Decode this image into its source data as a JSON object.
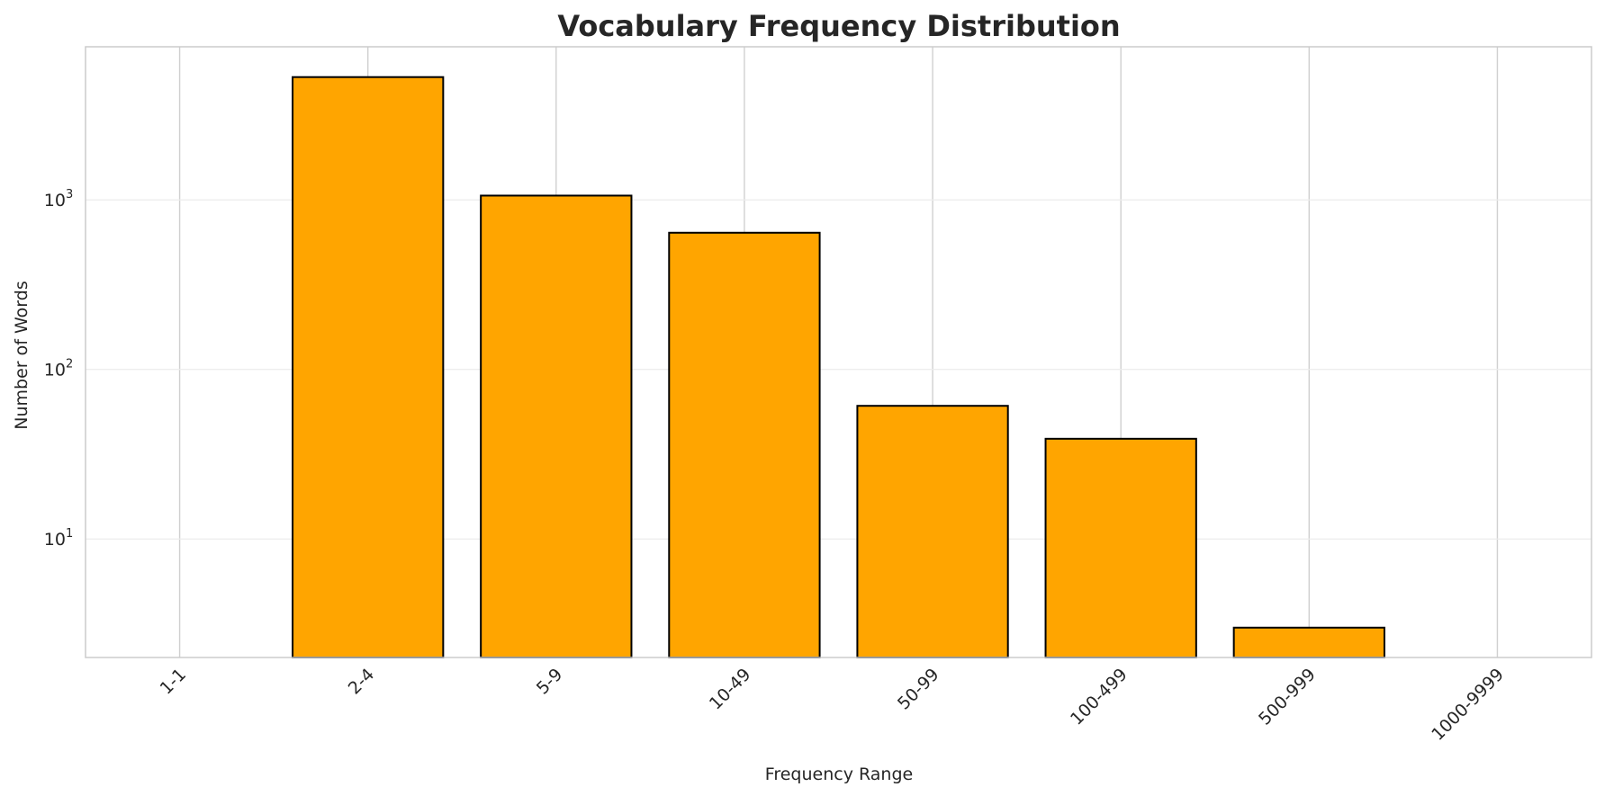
{
  "chart_data": {
    "type": "bar",
    "title": "Vocabulary Frequency Distribution",
    "xlabel": "Frequency Range",
    "ylabel": "Number of Words",
    "yscale": "log",
    "ylim": [
      2,
      8000
    ],
    "categories": [
      "1-1",
      "2-4",
      "5-9",
      "10-49",
      "50-99",
      "100-499",
      "500-999",
      "1000-9999"
    ],
    "values": [
      0,
      5300,
      1060,
      640,
      61,
      39,
      3,
      0
    ],
    "yticks": [
      {
        "value": 10,
        "base": "10",
        "exp": "1"
      },
      {
        "value": 100,
        "base": "10",
        "exp": "2"
      },
      {
        "value": 1000,
        "base": "10",
        "exp": "3"
      }
    ],
    "grid": true,
    "bar_color": "#FFA500",
    "bar_edge_color": "#000000",
    "xtick_rotation": 45
  }
}
